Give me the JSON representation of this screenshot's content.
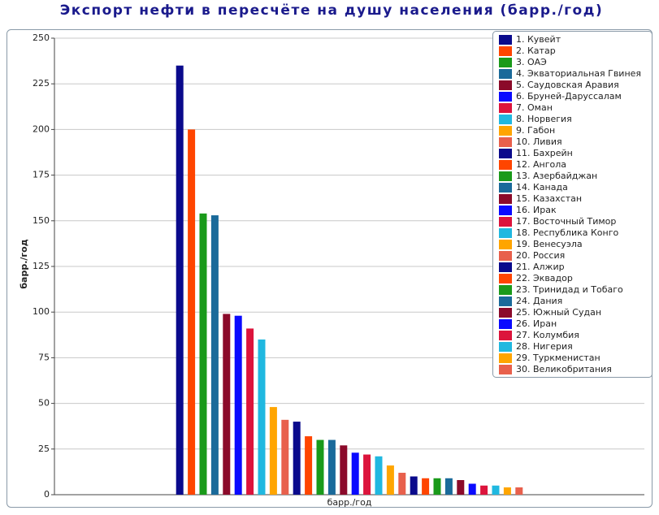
{
  "chart_data": {
    "type": "bar",
    "title": "Экспорт нефти в пересчёте на душу населения (барр./год)",
    "y_label": "барр./год",
    "categories": [
      "барр./год"
    ],
    "ylim": [
      0,
      250
    ],
    "yticks": [
      0,
      25,
      50,
      75,
      100,
      125,
      150,
      175,
      200,
      225,
      250
    ],
    "grid": true,
    "legend": "top-right",
    "series": [
      {
        "name": "1. Кувейт",
        "color": "#0a0a8c",
        "values": [
          235
        ]
      },
      {
        "name": "2. Катар",
        "color": "#ff4500",
        "values": [
          200
        ]
      },
      {
        "name": "3. ОАЭ",
        "color": "#1a9a1a",
        "values": [
          154
        ]
      },
      {
        "name": "4. Экваториальная Гвинея",
        "color": "#1a6a9a",
        "values": [
          153
        ]
      },
      {
        "name": "5. Саудовская Аравия",
        "color": "#8b0a2a",
        "values": [
          99
        ]
      },
      {
        "name": "6. Бруней-Даруссалам",
        "color": "#0a0aff",
        "values": [
          98
        ]
      },
      {
        "name": "7. Оман",
        "color": "#dc143c",
        "values": [
          91
        ]
      },
      {
        "name": "8. Норвегия",
        "color": "#20b8e0",
        "values": [
          85
        ]
      },
      {
        "name": "9. Габон",
        "color": "#ffa500",
        "values": [
          48
        ]
      },
      {
        "name": "10. Ливия",
        "color": "#e8604c",
        "values": [
          41
        ]
      },
      {
        "name": "11. Бахрейн",
        "color": "#0a0a8c",
        "values": [
          40
        ]
      },
      {
        "name": "12. Ангола",
        "color": "#ff4500",
        "values": [
          32
        ]
      },
      {
        "name": "13. Азербайджан",
        "color": "#1a9a1a",
        "values": [
          30
        ]
      },
      {
        "name": "14. Канада",
        "color": "#1a6a9a",
        "values": [
          30
        ]
      },
      {
        "name": "15. Казахстан",
        "color": "#8b0a2a",
        "values": [
          27
        ]
      },
      {
        "name": "16. Ирак",
        "color": "#0a0aff",
        "values": [
          23
        ]
      },
      {
        "name": "17. Восточный Тимор",
        "color": "#dc143c",
        "values": [
          22
        ]
      },
      {
        "name": "18. Республика Конго",
        "color": "#20b8e0",
        "values": [
          21
        ]
      },
      {
        "name": "19. Венесуэла",
        "color": "#ffa500",
        "values": [
          16
        ]
      },
      {
        "name": "20. Россия",
        "color": "#e8604c",
        "values": [
          12
        ]
      },
      {
        "name": "21. Алжир",
        "color": "#0a0a8c",
        "values": [
          10
        ]
      },
      {
        "name": "22. Эквадор",
        "color": "#ff4500",
        "values": [
          9
        ]
      },
      {
        "name": "23. Тринидад и Тобаго",
        "color": "#1a9a1a",
        "values": [
          9
        ]
      },
      {
        "name": "24. Дания",
        "color": "#1a6a9a",
        "values": [
          9
        ]
      },
      {
        "name": "25. Южный Судан",
        "color": "#8b0a2a",
        "values": [
          8
        ]
      },
      {
        "name": "26. Иран",
        "color": "#0a0aff",
        "values": [
          6
        ]
      },
      {
        "name": "27. Колумбия",
        "color": "#dc143c",
        "values": [
          5
        ]
      },
      {
        "name": "28. Нигерия",
        "color": "#20b8e0",
        "values": [
          5
        ]
      },
      {
        "name": "29. Туркменистан",
        "color": "#ffa500",
        "values": [
          4
        ]
      },
      {
        "name": "30. Великобритания",
        "color": "#e8604c",
        "values": [
          4
        ]
      }
    ]
  }
}
